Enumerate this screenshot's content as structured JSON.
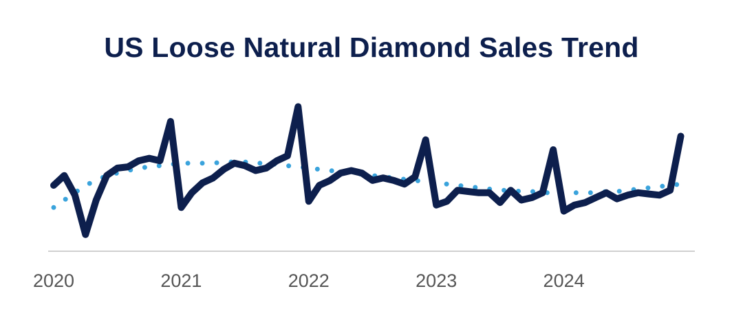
{
  "chart_data": {
    "type": "line",
    "title": "US Loose Natural Diamond Sales Trend",
    "xlabel": "",
    "ylabel": "",
    "x_ticks": [
      "2020",
      "2021",
      "2022",
      "2023",
      "2024"
    ],
    "y_axis_labels": false,
    "grid": false,
    "legend": "none",
    "series": [
      {
        "style": "solid",
        "color": "#0d1f4d",
        "values": [
          48,
          56,
          40,
          8,
          36,
          56,
          62,
          63,
          68,
          70,
          68,
          100,
          30,
          42,
          50,
          54,
          61,
          66,
          64,
          60,
          62,
          68,
          72,
          112,
          35,
          48,
          52,
          58,
          60,
          58,
          52,
          54,
          52,
          49,
          55,
          85,
          32,
          35,
          44,
          43,
          42,
          42,
          34,
          44,
          36,
          38,
          42,
          77,
          27,
          32,
          34,
          38,
          42,
          37,
          40,
          42,
          41,
          40,
          44,
          88
        ],
        "x_start": 2020.0,
        "x_step": 0.08333
      },
      {
        "style": "dotted",
        "color": "#3aa3dc",
        "values": [
          30,
          36,
          42,
          48,
          52,
          56,
          58,
          60,
          62,
          63,
          64,
          65,
          66,
          66,
          66,
          66,
          67,
          67,
          67,
          66,
          66,
          65,
          64,
          63,
          62,
          61,
          60,
          59,
          58,
          57,
          56,
          55,
          54,
          53,
          52,
          51,
          50,
          49,
          48,
          47,
          46,
          45,
          44,
          44,
          43,
          43,
          42,
          42,
          42,
          42,
          42,
          42,
          43,
          43,
          44,
          45,
          46,
          47,
          48,
          49
        ],
        "x_start": 2020.0,
        "x_step": 0.08333
      }
    ],
    "xlim": [
      2020.0,
      2025.0
    ],
    "ylim": [
      0,
      115
    ],
    "colors": {
      "title": "#0d1f4d",
      "axis": "#d0d0d0",
      "tick_text": "#555555"
    }
  }
}
